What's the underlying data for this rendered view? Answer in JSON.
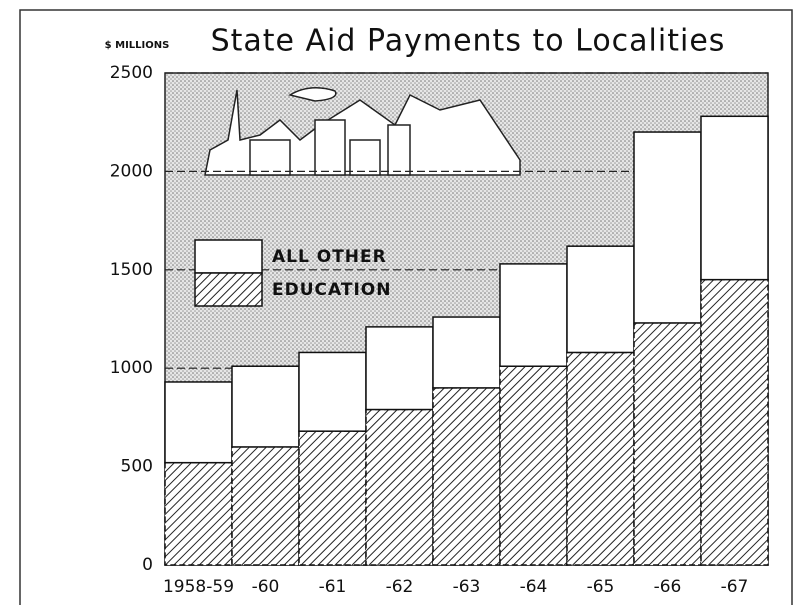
{
  "chart_data": {
    "type": "bar",
    "stacked": true,
    "title": "State Aid Payments to Localities",
    "y_label": "$ MILLIONS",
    "categories": [
      "1958-59",
      "-60",
      "-61",
      "-62",
      "-63",
      "-64",
      "-65",
      "-66",
      "-67"
    ],
    "series": [
      {
        "name": "EDUCATION",
        "color": "#111111",
        "values": [
          520,
          600,
          680,
          790,
          900,
          1010,
          1080,
          1230,
          1450
        ]
      },
      {
        "name": "ALL OTHER",
        "color": "#ffffff",
        "values": [
          410,
          410,
          400,
          420,
          360,
          520,
          540,
          970,
          830
        ]
      }
    ],
    "ylim": [
      0,
      2500
    ],
    "yticks": [
      0,
      500,
      1000,
      1500,
      2000,
      2500
    ],
    "grid": true
  }
}
